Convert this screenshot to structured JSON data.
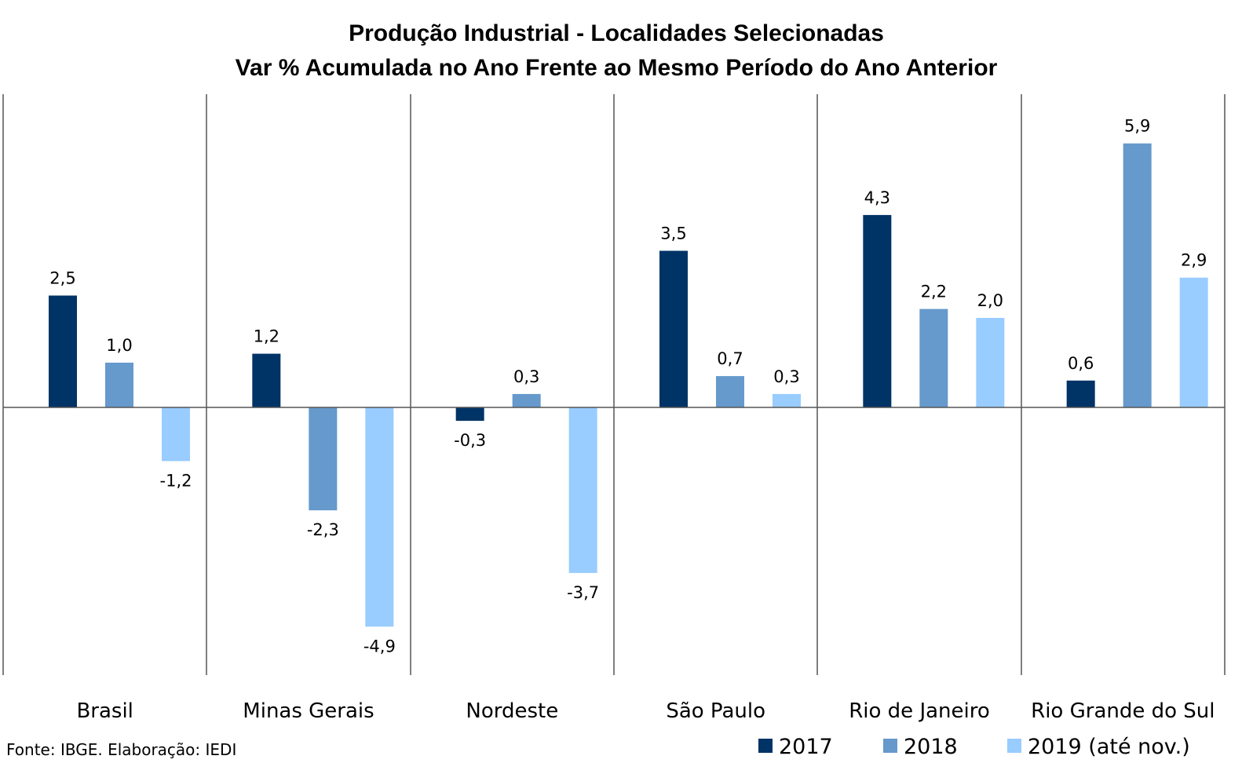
{
  "chart_data": {
    "type": "bar",
    "title": "Produção Industrial - Localidades Selecionadas",
    "subtitle": "Var % Acumulada no Ano Frente ao Mesmo Período do Ano Anterior",
    "categories": [
      "Brasil",
      "Minas Gerais",
      "Nordeste",
      "São Paulo",
      "Rio de Janeiro",
      "Rio Grande do Sul"
    ],
    "series": [
      {
        "name": "2017",
        "color": "#003366",
        "values": [
          2.5,
          1.2,
          -0.3,
          3.5,
          4.3,
          0.6
        ]
      },
      {
        "name": "2018",
        "color": "#6699CC",
        "values": [
          1.0,
          -2.3,
          0.3,
          0.7,
          2.2,
          5.9
        ]
      },
      {
        "name": "2019 (até nov.)",
        "color": "#99CCFF",
        "values": [
          -1.2,
          -4.9,
          -3.7,
          0.3,
          2.0,
          2.9
        ]
      }
    ],
    "ylim": [
      -6,
      7
    ],
    "legend_position": "bottom-right",
    "decimal_separator": ","
  },
  "source": "Fonte: IBGE. Elaboração: IEDI"
}
